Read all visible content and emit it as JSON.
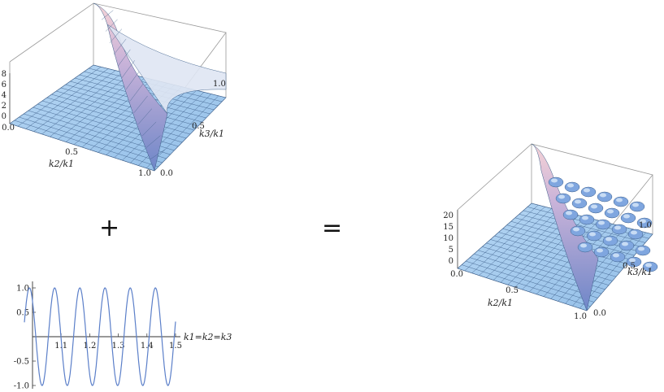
{
  "operators": {
    "plus": "+",
    "equals": "="
  },
  "chart_data": [
    {
      "type": "surface3d",
      "xlabel": "k2/k1",
      "ylabel": "k3/k1",
      "x_ticks": [
        "0.0",
        "0.5",
        "1.0"
      ],
      "y_ticks": [
        "0.0",
        "0.5",
        "1.0"
      ],
      "z_ticks": [
        "0",
        "2",
        "4",
        "6",
        "8"
      ],
      "zlim": [
        0,
        8
      ],
      "colors": {
        "surface": "#a9cdee",
        "peak": "#f2c9cf",
        "mesh": "#3d5f8a"
      }
    },
    {
      "type": "line",
      "xlabel": "k1=k2=k3",
      "x_ticks": [
        "1.1",
        "1.2",
        "1.3",
        "1.4",
        "1.5"
      ],
      "y_ticks": [
        "1.0",
        "0.5",
        "-0.5",
        "-1.0"
      ],
      "xlim": [
        1.0,
        1.5
      ],
      "ylim": [
        -1,
        1
      ],
      "series": [
        {
          "function": "sin",
          "amplitude": 1,
          "period": 0.0833,
          "color": "#5b7fc9"
        }
      ]
    },
    {
      "type": "surface3d",
      "xlabel": "k2/k1",
      "ylabel": "k3/k1",
      "x_ticks": [
        "0.0",
        "0.5",
        "1.0"
      ],
      "y_ticks": [
        "0.0",
        "0.5",
        "1.0"
      ],
      "z_ticks": [
        "0",
        "5",
        "10",
        "15",
        "20"
      ],
      "zlim": [
        0,
        20
      ],
      "colors": {
        "surface": "#a9cdee",
        "peak": "#f2c9cf",
        "mesh": "#3d5f8a"
      }
    }
  ]
}
